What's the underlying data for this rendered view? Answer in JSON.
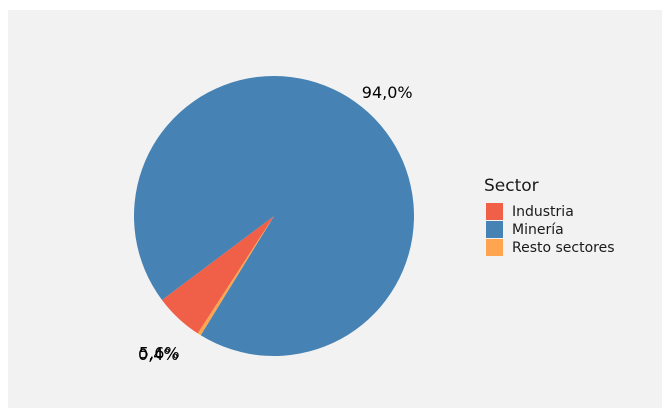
{
  "chart_data": {
    "type": "pie",
    "legend": {
      "title": "Sector",
      "position": "right"
    },
    "slices": [
      {
        "label": "Industria",
        "value": 5.6,
        "display": "5,6%",
        "color": "#f05f47"
      },
      {
        "label": "Minería",
        "value": 94.0,
        "display": "94,0%",
        "color": "#4682b4"
      },
      {
        "label": "Resto sectores",
        "value": 0.4,
        "display": "0,4%",
        "color": "#ffa54f"
      }
    ],
    "start_slice": "Industria",
    "direction": "clockwise",
    "colors": {
      "panel_background": "#f2f2f2",
      "page_background": "#ffffff"
    }
  }
}
